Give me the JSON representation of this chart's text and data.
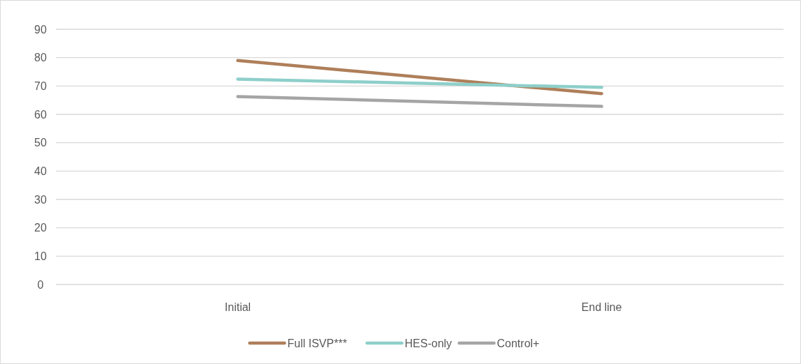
{
  "chart_data": {
    "type": "line",
    "categories": [
      "Initial",
      "End line"
    ],
    "series": [
      {
        "name": "Full ISVP***",
        "color": "#ae7f5a",
        "values": [
          79,
          67.3
        ]
      },
      {
        "name": "HES-only",
        "color": "#8ecfca",
        "values": [
          72.4,
          69.5
        ]
      },
      {
        "name": "Control+",
        "color": "#a5a5a5",
        "values": [
          66.3,
          62.8
        ]
      }
    ],
    "ylim": [
      0,
      90
    ],
    "yticks": [
      0,
      10,
      20,
      30,
      40,
      50,
      60,
      70,
      80,
      90
    ],
    "grid": "y",
    "legend": "bottom"
  }
}
